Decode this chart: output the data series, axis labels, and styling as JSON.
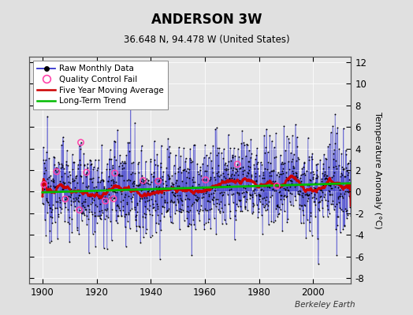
{
  "title": "ANDERSON 3W",
  "subtitle": "36.648 N, 94.478 W (United States)",
  "ylabel": "Temperature Anomaly (°C)",
  "watermark": "Berkeley Earth",
  "xlim": [
    1895,
    2014
  ],
  "ylim": [
    -8.5,
    12.5
  ],
  "yticks": [
    -8,
    -6,
    -4,
    -2,
    0,
    2,
    4,
    6,
    8,
    10,
    12
  ],
  "xticks": [
    1900,
    1920,
    1940,
    1960,
    1980,
    2000
  ],
  "bg_color": "#e0e0e0",
  "plot_bg_color": "#e8e8e8",
  "raw_line_color": "#3333cc",
  "raw_marker_color": "#000000",
  "qc_fail_color": "#ff44aa",
  "moving_avg_color": "#cc0000",
  "trend_color": "#00bb00",
  "seed": 12345,
  "n_years": 114,
  "start_year": 1900
}
